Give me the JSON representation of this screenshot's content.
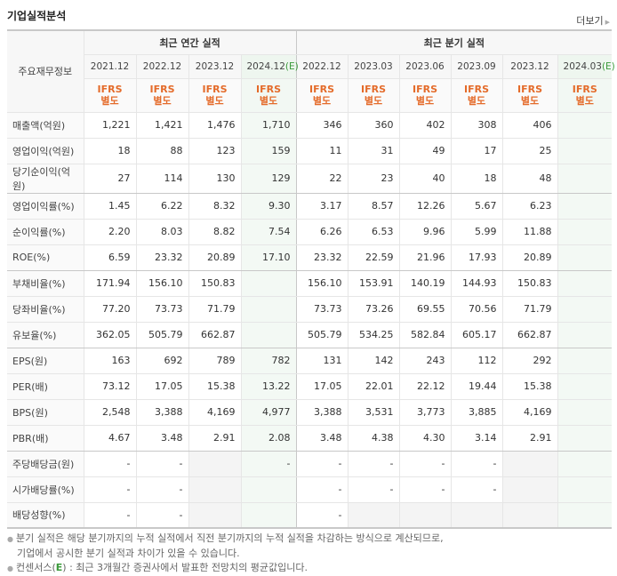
{
  "section": {
    "title": "기업실적분석",
    "more_label": "더보기"
  },
  "table": {
    "row_header": "주요재무정보",
    "groups": {
      "annual": "최근 연간 실적",
      "quarterly": "최근 분기 실적"
    },
    "periods": [
      {
        "label": "2021.12",
        "estimate": false
      },
      {
        "label": "2022.12",
        "estimate": false
      },
      {
        "label": "2023.12",
        "estimate": false
      },
      {
        "label": "2024.12",
        "estimate": true
      },
      {
        "label": "2022.12",
        "estimate": false
      },
      {
        "label": "2023.03",
        "estimate": false
      },
      {
        "label": "2023.06",
        "estimate": false
      },
      {
        "label": "2023.09",
        "estimate": false
      },
      {
        "label": "2023.12",
        "estimate": false
      },
      {
        "label": "2024.03",
        "estimate": true
      }
    ],
    "estimate_mark": "(E)",
    "ifrs_line1": "IFRS",
    "ifrs_line2": "별도",
    "rows": [
      {
        "label": "매출액(억원)",
        "values": [
          "1,221",
          "1,421",
          "1,476",
          "1,710",
          "346",
          "360",
          "402",
          "308",
          "406",
          ""
        ]
      },
      {
        "label": "영업이익(억원)",
        "values": [
          "18",
          "88",
          "123",
          "159",
          "11",
          "31",
          "49",
          "17",
          "25",
          ""
        ]
      },
      {
        "label": "당기순이익(억원)",
        "values": [
          "27",
          "114",
          "130",
          "129",
          "22",
          "23",
          "40",
          "18",
          "48",
          ""
        ]
      },
      {
        "label": "영업이익률(%)",
        "values": [
          "1.45",
          "6.22",
          "8.32",
          "9.30",
          "3.17",
          "8.57",
          "12.26",
          "5.67",
          "6.23",
          ""
        ]
      },
      {
        "label": "순이익률(%)",
        "values": [
          "2.20",
          "8.03",
          "8.82",
          "7.54",
          "6.26",
          "6.53",
          "9.96",
          "5.99",
          "11.88",
          ""
        ]
      },
      {
        "label": "ROE(%)",
        "values": [
          "6.59",
          "23.32",
          "20.89",
          "17.10",
          "23.32",
          "22.59",
          "21.96",
          "17.93",
          "20.89",
          ""
        ]
      },
      {
        "label": "부채비율(%)",
        "values": [
          "171.94",
          "156.10",
          "150.83",
          "",
          "156.10",
          "153.91",
          "140.19",
          "144.93",
          "150.83",
          ""
        ]
      },
      {
        "label": "당좌비율(%)",
        "values": [
          "77.20",
          "73.73",
          "71.79",
          "",
          "73.73",
          "73.26",
          "69.55",
          "70.56",
          "71.79",
          ""
        ]
      },
      {
        "label": "유보율(%)",
        "values": [
          "362.05",
          "505.79",
          "662.87",
          "",
          "505.79",
          "534.25",
          "582.84",
          "605.17",
          "662.87",
          ""
        ]
      },
      {
        "label": "EPS(원)",
        "values": [
          "163",
          "692",
          "789",
          "782",
          "131",
          "142",
          "243",
          "112",
          "292",
          ""
        ]
      },
      {
        "label": "PER(배)",
        "values": [
          "73.12",
          "17.05",
          "15.38",
          "13.22",
          "17.05",
          "22.01",
          "22.12",
          "19.44",
          "15.38",
          ""
        ]
      },
      {
        "label": "BPS(원)",
        "values": [
          "2,548",
          "3,388",
          "4,169",
          "4,977",
          "3,388",
          "3,531",
          "3,773",
          "3,885",
          "4,169",
          ""
        ]
      },
      {
        "label": "PBR(배)",
        "values": [
          "4.67",
          "3.48",
          "2.91",
          "2.08",
          "3.48",
          "4.38",
          "4.30",
          "3.14",
          "2.91",
          ""
        ]
      },
      {
        "label": "주당배당금(원)",
        "values": [
          "-",
          "-",
          "",
          "-",
          "-",
          "-",
          "-",
          "-",
          "",
          ""
        ]
      },
      {
        "label": "시가배당률(%)",
        "values": [
          "-",
          "-",
          "",
          "",
          "-",
          "-",
          "-",
          "-",
          "",
          ""
        ]
      },
      {
        "label": "배당성향(%)",
        "values": [
          "-",
          "-",
          "",
          "",
          "-",
          "",
          "",
          "",
          "",
          ""
        ]
      }
    ]
  },
  "notes": {
    "line1": "분기 실적은 해당 분기까지의 누적 실적에서 직전 분기까지의 누적 실적을 차감하는 방식으로 계산되므로,",
    "line2": "기업에서 공시한 분기 실적과 차이가 있을 수 있습니다.",
    "line3_prefix": "컨센서스(",
    "line3_e": "E",
    "line3_suffix": ") : 최근 3개월간 증권사에서 발표한 전망치의 평균값입니다."
  }
}
